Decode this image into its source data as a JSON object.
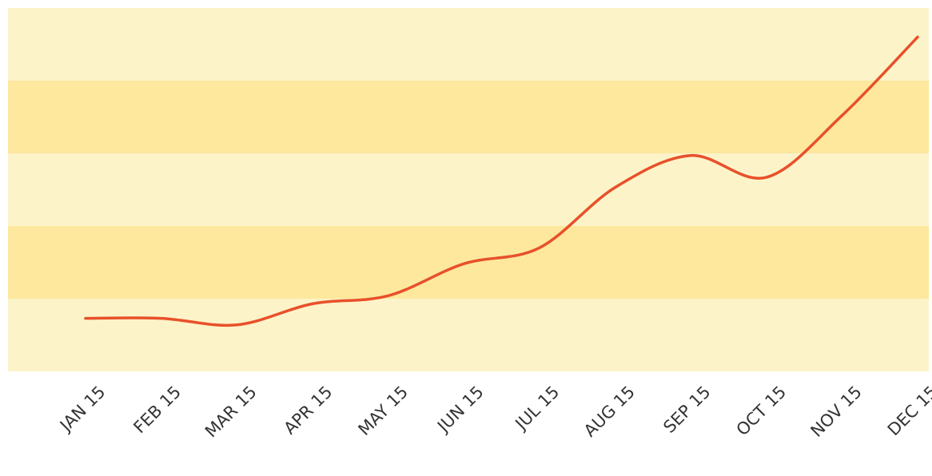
{
  "chart_data": {
    "type": "line",
    "categories": [
      "JAN 15",
      "FEB 15",
      "MAR 15",
      "APR 15",
      "MAY 15",
      "JUN 15",
      "JUL 15",
      "AUG 15",
      "SEP 15",
      "OCT 15",
      "NOV 15",
      "DEC 15"
    ],
    "values": [
      0.73,
      0.73,
      0.64,
      0.93,
      1.04,
      1.48,
      1.7,
      2.53,
      2.97,
      2.67,
      3.52,
      4.6
    ],
    "color": "#e8502a",
    "ylim": [
      0,
      5
    ],
    "yticks": [
      0,
      1,
      2,
      3,
      4,
      5
    ],
    "band_colors": [
      "#fdf3c9",
      "#fde89e"
    ]
  }
}
